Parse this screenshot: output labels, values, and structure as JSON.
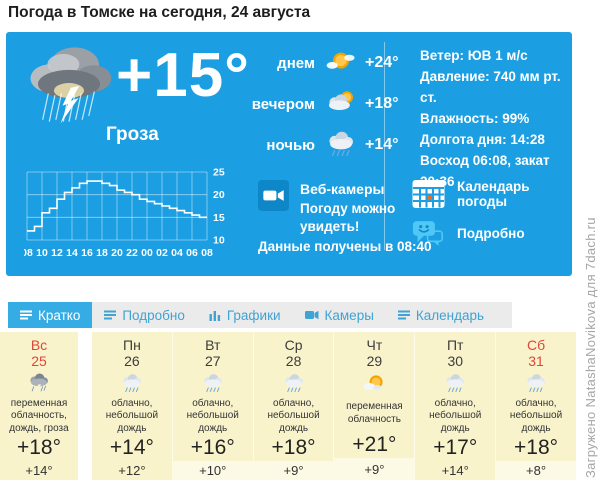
{
  "page": {
    "title": "Погода в Томске на сегодня, 24 августа"
  },
  "current": {
    "temp": "+15°",
    "condition": "Гроза",
    "times": [
      {
        "label": "днем",
        "temp": "+24°",
        "icon": "sun-clouds-icon"
      },
      {
        "label": "вечером",
        "temp": "+18°",
        "icon": "cloud-sun-icon"
      },
      {
        "label": "ночью",
        "temp": "+14°",
        "icon": "cloud-rain-icon"
      }
    ],
    "details": [
      "Ветер: ЮВ 1 м/с",
      "Давление: 740 мм рт. ст.",
      "Влажность: 99%",
      "Долгота дня: 14:28",
      "Восход 06:08, закат 20:36"
    ],
    "webcams_title": "Веб-камеры",
    "webcams_subtitle": "Погоду можно увидеть!",
    "data_received": "Данные получены в 08:40",
    "calendar_link": "Календарь погоды",
    "details_link": "Подробно"
  },
  "chart_data": {
    "type": "line",
    "step": true,
    "x_tick_labels": [
      "08",
      "10",
      "12",
      "14",
      "16",
      "18",
      "20",
      "22",
      "00",
      "02",
      "04",
      "06",
      "08"
    ],
    "hourly_temps": [
      12,
      13,
      16,
      17,
      19,
      20.5,
      21.5,
      22.5,
      23,
      23,
      22.5,
      22,
      21,
      20.5,
      20,
      19,
      18.5,
      18,
      17.5,
      17,
      16.5,
      16,
      15.5,
      15,
      15
    ],
    "ylim": [
      10,
      25
    ],
    "yticks": [
      10,
      15,
      20,
      25
    ],
    "grid": true,
    "line_color": "#ffffff",
    "tick_color": "#ffffff"
  },
  "tabs": [
    {
      "label": "Кратко",
      "active": true,
      "icon": "list-icon"
    },
    {
      "label": "Подробно",
      "active": false,
      "icon": "list-icon"
    },
    {
      "label": "Графики",
      "active": false,
      "icon": "bar-chart-icon"
    },
    {
      "label": "Камеры",
      "active": false,
      "icon": "camera-icon"
    },
    {
      "label": "Календарь",
      "active": false,
      "icon": "list-icon"
    }
  ],
  "forecast": [
    {
      "day": "Вс",
      "date": "25",
      "desc": "переменная облачность, дождь, гроза",
      "day_temp": "+18°",
      "night_temp": "+14°",
      "weekend": true,
      "icon": "storm-cloud-icon"
    },
    {
      "day": "Пн",
      "date": "26",
      "desc": "облачно, небольшой дождь",
      "day_temp": "+14°",
      "night_temp": "+12°",
      "weekend": false,
      "icon": "cloud-rain-icon"
    },
    {
      "day": "Вт",
      "date": "27",
      "desc": "облачно, небольшой дождь",
      "day_temp": "+16°",
      "night_temp": "+10°",
      "weekend": false,
      "icon": "cloud-rain-icon"
    },
    {
      "day": "Ср",
      "date": "28",
      "desc": "облачно, небольшой дождь",
      "day_temp": "+18°",
      "night_temp": "+9°",
      "weekend": false,
      "icon": "cloud-rain-icon"
    },
    {
      "day": "Чт",
      "date": "29",
      "desc": "переменная облачность",
      "day_temp": "+21°",
      "night_temp": "+9°",
      "weekend": false,
      "icon": "sun-cloud-icon"
    },
    {
      "day": "Пт",
      "date": "30",
      "desc": "облачно, небольшой дождь",
      "day_temp": "+17°",
      "night_temp": "+14°",
      "weekend": false,
      "icon": "cloud-rain-icon"
    },
    {
      "day": "Сб",
      "date": "31",
      "desc": "облачно, небольшой дождь",
      "day_temp": "+18°",
      "night_temp": "+8°",
      "weekend": true,
      "icon": "cloud-rain-icon"
    }
  ],
  "watermark": "Загружено NatashaNovikova для 7dach.ru",
  "colors": {
    "panel_blue": "#1b9ee2",
    "tile_blue": "#0d87c8",
    "accent_light_blue": "#4fc8f5",
    "tab_active_blue": "#35ade4",
    "card_yellow": "#f9f3cc",
    "night_strip_yellow": "#fcf9e4",
    "weekend_red": "#e0453a"
  }
}
